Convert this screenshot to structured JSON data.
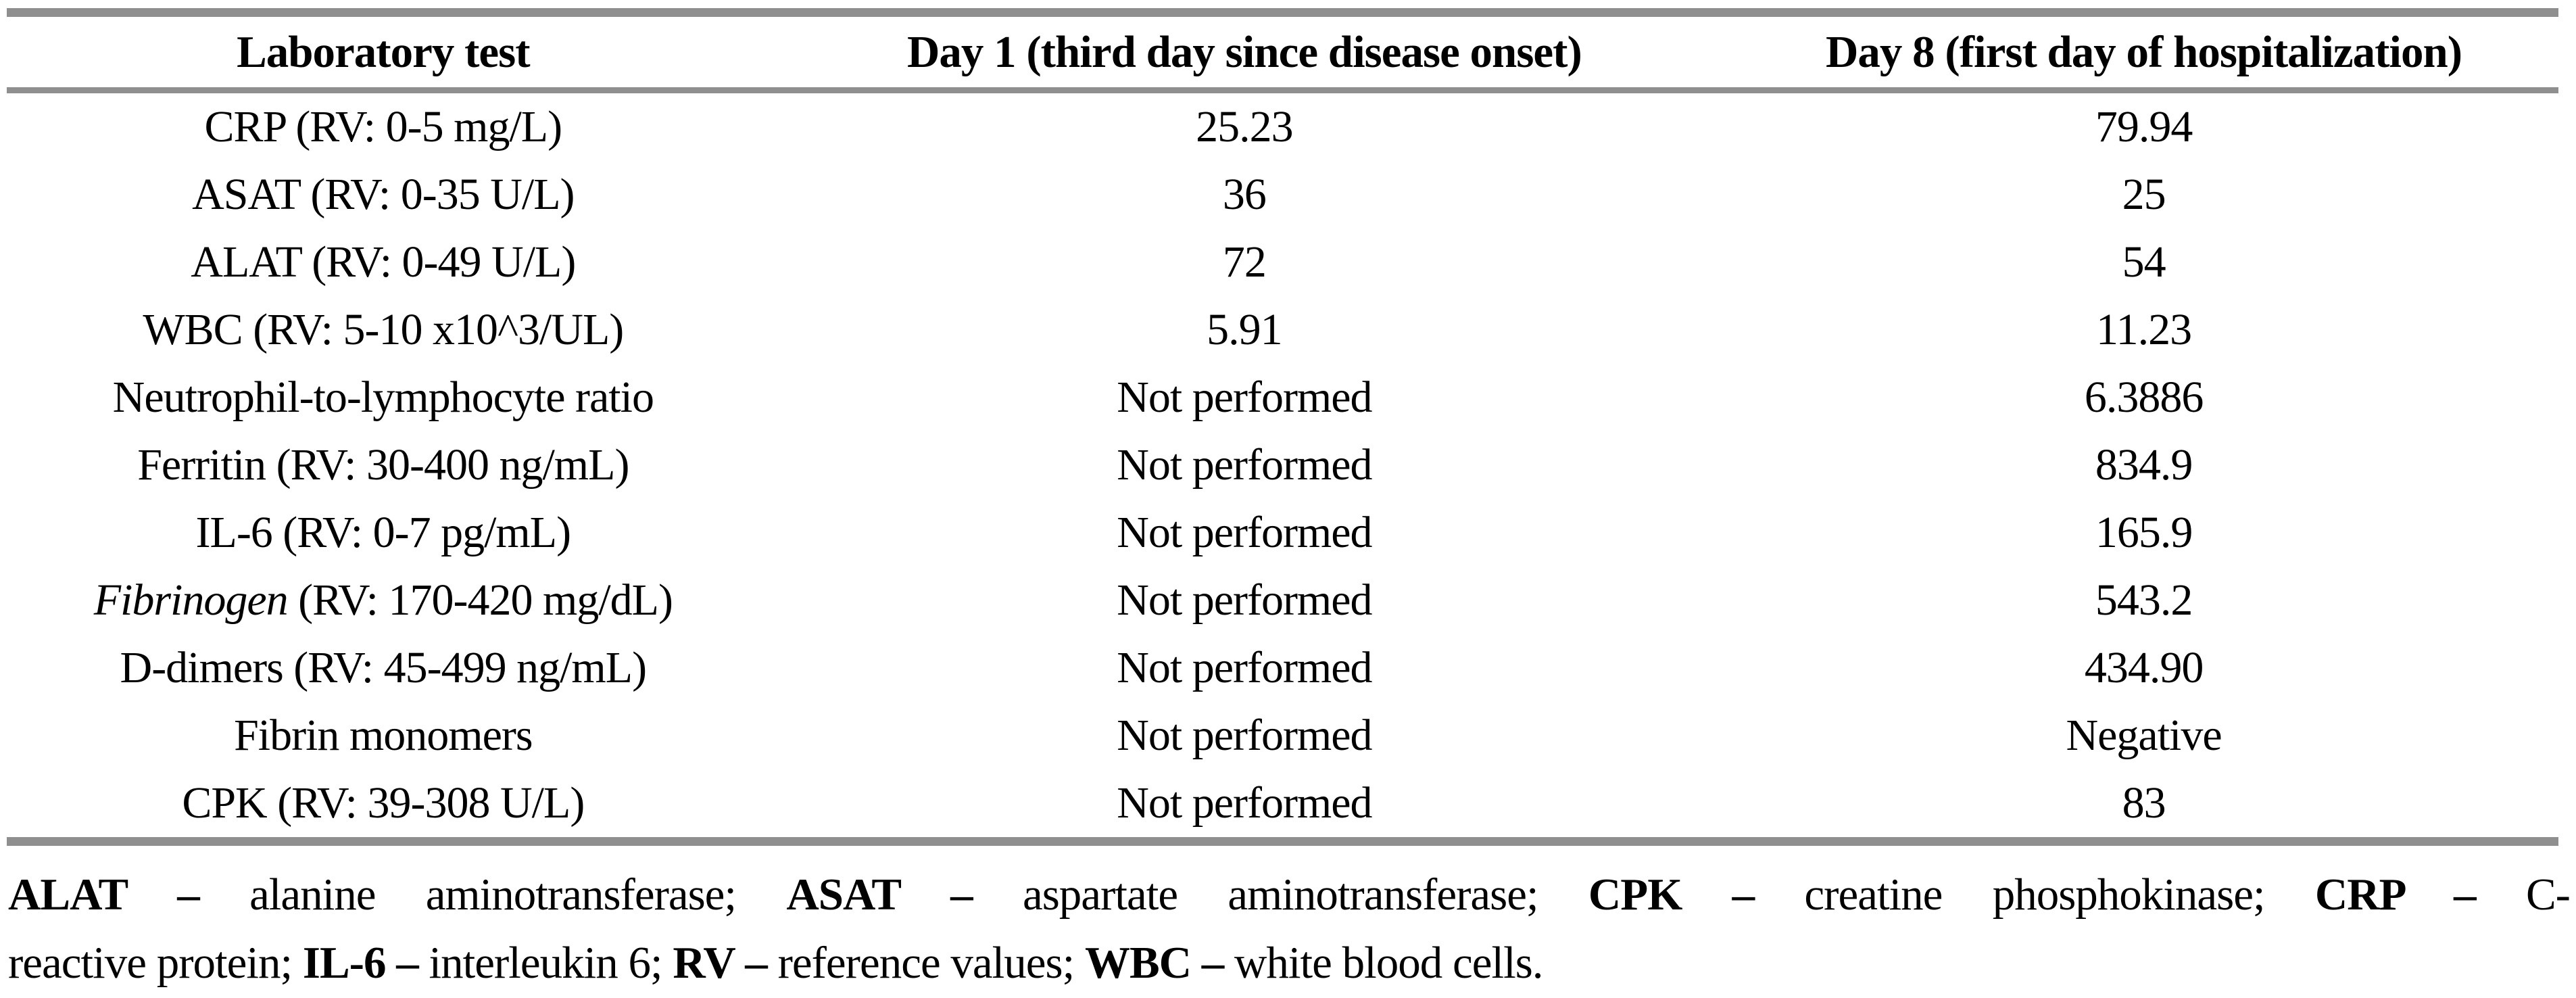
{
  "table": {
    "columns": [
      "Laboratory test",
      "Day 1 (third day since disease onset)",
      "Day 8 (first day of hospitalization)"
    ],
    "rows": [
      {
        "test_italic": "",
        "test_text": "CRP (RV: 0-5 mg/L)",
        "day1": "25.23",
        "day8": "79.94"
      },
      {
        "test_italic": "",
        "test_text": "ASAT (RV: 0-35 U/L)",
        "day1": "36",
        "day8": "25"
      },
      {
        "test_italic": "",
        "test_text": "ALAT (RV: 0-49 U/L)",
        "day1": "72",
        "day8": "54"
      },
      {
        "test_italic": "",
        "test_text": "WBC (RV: 5-10 x10^3/UL)",
        "day1": "5.91",
        "day8": "11.23"
      },
      {
        "test_italic": "",
        "test_text": "Neutrophil-to-lymphocyte ratio",
        "day1": "Not performed",
        "day8": "6.3886"
      },
      {
        "test_italic": "",
        "test_text": "Ferritin (RV: 30-400 ng/mL)",
        "day1": "Not performed",
        "day8": "834.9"
      },
      {
        "test_italic": "",
        "test_text": "IL-6 (RV: 0-7 pg/mL)",
        "day1": "Not performed",
        "day8": "165.9"
      },
      {
        "test_italic": "Fibrinogen",
        "test_text": " (RV: 170-420 mg/dL)",
        "day1": "Not performed",
        "day8": "543.2"
      },
      {
        "test_italic": "",
        "test_text": "D-dimers (RV: 45-499 ng/mL)",
        "day1": "Not performed",
        "day8": "434.90"
      },
      {
        "test_italic": "",
        "test_text": "Fibrin monomers",
        "day1": "Not performed",
        "day8": "Negative"
      },
      {
        "test_italic": "",
        "test_text": "CPK (RV: 39-308 U/L)",
        "day1": "Not performed",
        "day8": "83"
      }
    ]
  },
  "footnote": {
    "lines": [
      [
        {
          "t": "ALAT –",
          "b": true
        },
        {
          "t": " alanine aminotransferase; ",
          "b": false
        },
        {
          "t": "ASAT –",
          "b": true
        },
        {
          "t": " aspartate aminotransferase; ",
          "b": false
        },
        {
          "t": "CPK –",
          "b": true
        },
        {
          "t": " creatine phosphokinase; ",
          "b": false
        },
        {
          "t": "CRP –",
          "b": true
        },
        {
          "t": " C-",
          "b": false
        }
      ],
      [
        {
          "t": "reactive protein; ",
          "b": false
        },
        {
          "t": "IL-6 –",
          "b": true
        },
        {
          "t": " interleukin 6; ",
          "b": false
        },
        {
          "t": "RV –",
          "b": true
        },
        {
          "t": " reference values; ",
          "b": false
        },
        {
          "t": "WBC –",
          "b": true
        },
        {
          "t": " white blood cells.",
          "b": false
        }
      ]
    ]
  }
}
